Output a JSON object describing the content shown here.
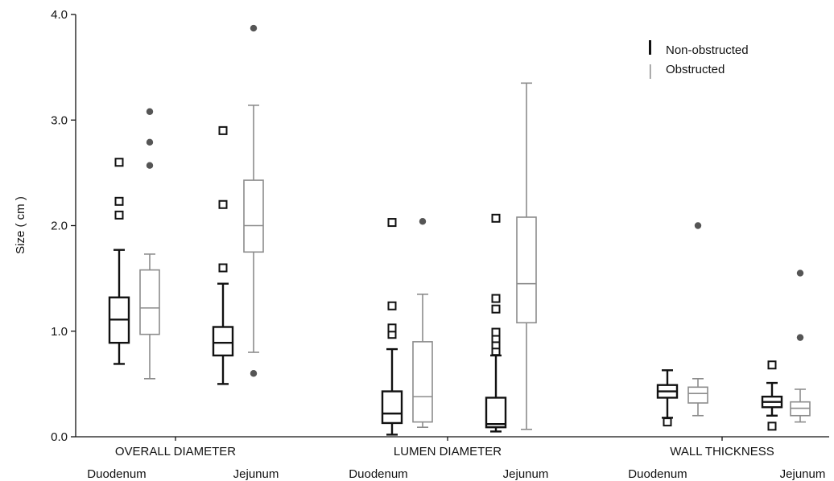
{
  "chart_data": {
    "type": "box",
    "ylabel": "Size ( cm )",
    "ylim": [
      0,
      4.0
    ],
    "yticks": [
      "0.0",
      "1.0",
      "2.0",
      "3.0",
      "4.0"
    ],
    "grid": false,
    "legend_placement": "top-right",
    "colors": {
      "Non-obstructed": "#111111",
      "Obstructed": "#8c8c8c",
      "outlier_dot": "#555555"
    },
    "series": [
      {
        "name": "Non-obstructed",
        "outlier_marker": "open-square"
      },
      {
        "name": "Obstructed",
        "outlier_marker": "filled-circle"
      }
    ],
    "groups": [
      {
        "label": "OVERALL DIAMETER",
        "categories": [
          {
            "label": "Duodenum",
            "boxes": [
              {
                "series": "Non-obstructed",
                "whisker_low": 0.69,
                "q1": 0.89,
                "median": 1.11,
                "q3": 1.32,
                "whisker_high": 1.77,
                "outliers": [
                  2.1,
                  2.23,
                  2.6
                ]
              },
              {
                "series": "Obstructed",
                "whisker_low": 0.55,
                "q1": 0.97,
                "median": 1.22,
                "q3": 1.58,
                "whisker_high": 1.73,
                "outliers": [
                  2.57,
                  2.79,
                  3.08
                ]
              }
            ]
          },
          {
            "label": "Jejunum",
            "boxes": [
              {
                "series": "Non-obstructed",
                "whisker_low": 0.5,
                "q1": 0.77,
                "median": 0.89,
                "q3": 1.04,
                "whisker_high": 1.45,
                "outliers": [
                  1.6,
                  1.6,
                  2.2,
                  2.9
                ]
              },
              {
                "series": "Obstructed",
                "whisker_low": 0.8,
                "q1": 1.75,
                "median": 2.0,
                "q3": 2.43,
                "whisker_high": 3.14,
                "outliers": [
                  0.6,
                  3.87
                ]
              }
            ]
          }
        ]
      },
      {
        "label": "LUMEN DIAMETER",
        "categories": [
          {
            "label": "Duodenum",
            "boxes": [
              {
                "series": "Non-obstructed",
                "whisker_low": 0.02,
                "q1": 0.13,
                "median": 0.22,
                "q3": 0.43,
                "whisker_high": 0.83,
                "outliers": [
                  0.97,
                  1.03,
                  1.24,
                  2.03
                ]
              },
              {
                "series": "Obstructed",
                "whisker_low": 0.09,
                "q1": 0.14,
                "median": 0.38,
                "q3": 0.9,
                "whisker_high": 1.35,
                "outliers": [
                  2.04
                ]
              }
            ]
          },
          {
            "label": "Jejunum",
            "boxes": [
              {
                "series": "Non-obstructed",
                "whisker_low": 0.05,
                "q1": 0.09,
                "median": 0.12,
                "q3": 0.37,
                "whisker_high": 0.77,
                "outliers": [
                  0.81,
                  0.87,
                  0.93,
                  0.99,
                  1.21,
                  1.31,
                  2.07
                ]
              },
              {
                "series": "Obstructed",
                "whisker_low": 0.07,
                "q1": 1.08,
                "median": 1.45,
                "q3": 2.08,
                "whisker_high": 3.35,
                "outliers": []
              }
            ]
          }
        ]
      },
      {
        "label": "WALL THICKNESS",
        "categories": [
          {
            "label": "Duodenum",
            "boxes": [
              {
                "series": "Non-obstructed",
                "whisker_low": 0.18,
                "q1": 0.37,
                "median": 0.43,
                "q3": 0.49,
                "whisker_high": 0.63,
                "outliers": [
                  0.14
                ]
              },
              {
                "series": "Obstructed",
                "whisker_low": 0.2,
                "q1": 0.32,
                "median": 0.41,
                "q3": 0.47,
                "whisker_high": 0.55,
                "outliers": [
                  2.0
                ]
              }
            ]
          },
          {
            "label": "Jejunum",
            "boxes": [
              {
                "series": "Non-obstructed",
                "whisker_low": 0.2,
                "q1": 0.28,
                "median": 0.33,
                "q3": 0.38,
                "whisker_high": 0.51,
                "outliers": [
                  0.1,
                  0.68
                ]
              },
              {
                "series": "Obstructed",
                "whisker_low": 0.14,
                "q1": 0.2,
                "median": 0.27,
                "q3": 0.33,
                "whisker_high": 0.45,
                "outliers": [
                  0.94,
                  1.55
                ]
              }
            ]
          }
        ]
      }
    ]
  }
}
